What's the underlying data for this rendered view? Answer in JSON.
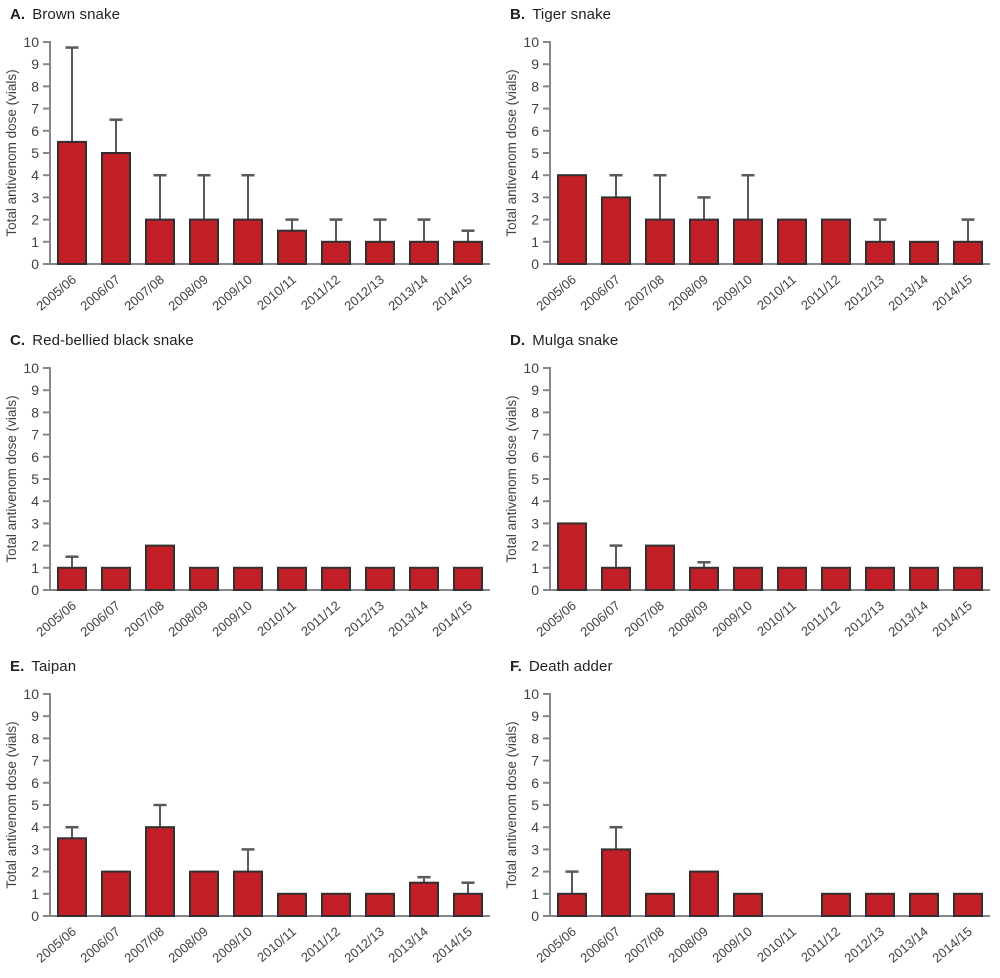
{
  "figure": {
    "ylabel": "Total antivenom dose (vials)"
  },
  "colors": {
    "bar_fill": "#c22026",
    "bar_stroke": "#332f30",
    "error_bar": "#58595b",
    "axis": "#85878a",
    "tick_text": "#414042",
    "title_text": "#231f20"
  },
  "chart_data": [
    {
      "type": "bar",
      "panel_label": "A.",
      "title": "Brown snake",
      "categories": [
        "2005/06",
        "2006/07",
        "2007/08",
        "2008/09",
        "2009/10",
        "2010/11",
        "2011/12",
        "2012/13",
        "2013/14",
        "2014/15"
      ],
      "values": [
        5.5,
        5,
        2,
        2,
        2,
        1.5,
        1,
        1,
        1,
        1
      ],
      "errors_upper": [
        9.75,
        6.5,
        4,
        4,
        4,
        2,
        2,
        2,
        2,
        1.5
      ],
      "xlabel": "",
      "ylabel": "Total antivenom dose (vials)",
      "ylim": [
        0,
        10
      ],
      "ytick_step": 1,
      "grid": false,
      "legend": "none"
    },
    {
      "type": "bar",
      "panel_label": "B.",
      "title": "Tiger snake",
      "categories": [
        "2005/06",
        "2006/07",
        "2007/08",
        "2008/09",
        "2009/10",
        "2010/11",
        "2011/12",
        "2012/13",
        "2013/14",
        "2014/15"
      ],
      "values": [
        4,
        3,
        2,
        2,
        2,
        2,
        2,
        1,
        1,
        1
      ],
      "errors_upper": [
        null,
        4,
        4,
        3,
        4,
        null,
        null,
        2,
        null,
        2
      ],
      "xlabel": "",
      "ylabel": "Total antivenom dose (vials)",
      "ylim": [
        0,
        10
      ],
      "ytick_step": 1,
      "grid": false,
      "legend": "none"
    },
    {
      "type": "bar",
      "panel_label": "C.",
      "title": "Red-bellied black snake",
      "categories": [
        "2005/06",
        "2006/07",
        "2007/08",
        "2008/09",
        "2009/10",
        "2010/11",
        "2011/12",
        "2012/13",
        "2013/14",
        "2014/15"
      ],
      "values": [
        1,
        1,
        2,
        1,
        1,
        1,
        1,
        1,
        1,
        1
      ],
      "errors_upper": [
        1.5,
        null,
        null,
        null,
        null,
        null,
        null,
        null,
        null,
        null
      ],
      "xlabel": "",
      "ylabel": "Total antivenom dose (vials)",
      "ylim": [
        0,
        10
      ],
      "ytick_step": 1,
      "grid": false,
      "legend": "none"
    },
    {
      "type": "bar",
      "panel_label": "D.",
      "title": "Mulga snake",
      "categories": [
        "2005/06",
        "2006/07",
        "2007/08",
        "2008/09",
        "2009/10",
        "2010/11",
        "2011/12",
        "2012/13",
        "2013/14",
        "2014/15"
      ],
      "values": [
        3,
        1,
        2,
        1,
        1,
        1,
        1,
        1,
        1,
        1
      ],
      "errors_upper": [
        null,
        2,
        null,
        1.25,
        null,
        null,
        null,
        null,
        null,
        null
      ],
      "xlabel": "",
      "ylabel": "Total antivenom dose (vials)",
      "ylim": [
        0,
        10
      ],
      "ytick_step": 1,
      "grid": false,
      "legend": "none"
    },
    {
      "type": "bar",
      "panel_label": "E.",
      "title": "Taipan",
      "categories": [
        "2005/06",
        "2006/07",
        "2007/08",
        "2008/09",
        "2009/10",
        "2010/11",
        "2011/12",
        "2012/13",
        "2013/14",
        "2014/15"
      ],
      "values": [
        3.5,
        2,
        4,
        2,
        2,
        1,
        1,
        1,
        1.5,
        1
      ],
      "errors_upper": [
        4,
        null,
        5,
        null,
        3,
        null,
        null,
        null,
        1.75,
        1.5
      ],
      "xlabel": "",
      "ylabel": "Total antivenom dose (vials)",
      "ylim": [
        0,
        10
      ],
      "ytick_step": 1,
      "grid": false,
      "legend": "none"
    },
    {
      "type": "bar",
      "panel_label": "F.",
      "title": "Death adder",
      "categories": [
        "2005/06",
        "2006/07",
        "2007/08",
        "2008/09",
        "2009/10",
        "2010/11",
        "2011/12",
        "2012/13",
        "2013/14",
        "2014/15"
      ],
      "values": [
        1,
        3,
        1,
        2,
        1,
        0,
        1,
        1,
        1,
        1
      ],
      "errors_upper": [
        2,
        4,
        null,
        null,
        null,
        null,
        null,
        null,
        null,
        null
      ],
      "xlabel": "",
      "ylabel": "Total antivenom dose (vials)",
      "ylim": [
        0,
        10
      ],
      "ytick_step": 1,
      "grid": false,
      "legend": "none"
    }
  ]
}
